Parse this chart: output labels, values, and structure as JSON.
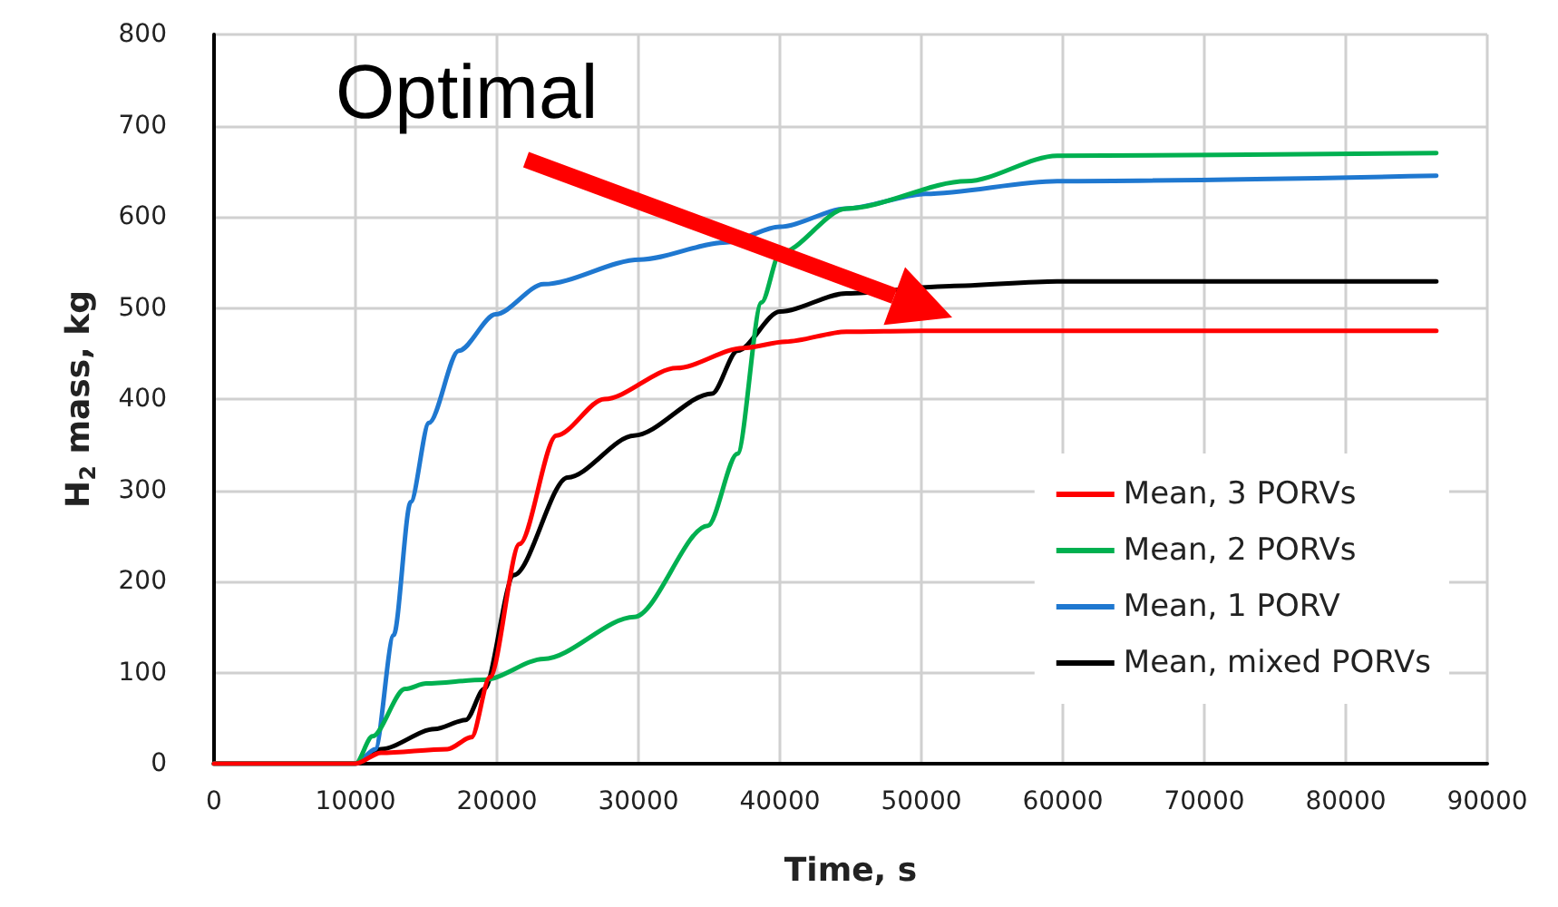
{
  "chart_data": {
    "type": "line",
    "xlabel": "Time, s",
    "ylabel": "H$_{2}$ mass, kg",
    "annotations": [
      "Optimal"
    ],
    "xlim": [
      0,
      90000
    ],
    "xticks": [
      0,
      10000,
      20000,
      30000,
      40000,
      50000,
      60000,
      70000,
      80000,
      90000
    ],
    "ylim": [
      0,
      800
    ],
    "yticks": [
      0,
      100,
      200,
      300,
      400,
      500,
      600,
      700,
      800
    ],
    "grid": true,
    "legend": "bottom right",
    "marker": "none",
    "line_style": "solid",
    "series": [
      {
        "name": "Mean, 3 PORVs",
        "color": "#ff0000",
        "x": [
          0,
          10000,
          11800,
          16500,
          18200,
          19500,
          21600,
          24200,
          27600,
          32700,
          37400,
          40400,
          44700,
          50000,
          86400
        ],
        "values": [
          0,
          0,
          12,
          16,
          29,
          95,
          241,
          360,
          400,
          434,
          456,
          463,
          474,
          475,
          475
        ]
      },
      {
        "name": "Mean, 2 PORVs",
        "color": "#00b050",
        "x": [
          0,
          10000,
          11200,
          13500,
          15000,
          19100,
          23300,
          29700,
          34900,
          37000,
          38700,
          40000,
          44700,
          53200,
          59600,
          86400
        ],
        "values": [
          0,
          0,
          30,
          82,
          88,
          92,
          115,
          161,
          261,
          340,
          506,
          560,
          609,
          639,
          667,
          670
        ]
      },
      {
        "name": "Mean, 1 PORV",
        "color": "#1f78d0",
        "x": [
          0,
          10000,
          11400,
          12700,
          13900,
          15200,
          17300,
          19900,
          23300,
          30100,
          36200,
          40000,
          44700,
          50300,
          59600,
          86400
        ],
        "values": [
          0,
          0,
          16,
          141,
          287,
          374,
          453,
          493,
          526,
          553,
          572,
          589,
          609,
          625,
          639,
          645
        ]
      },
      {
        "name": "Mean, mixed PORVs",
        "color": "#000000",
        "x": [
          0,
          10000,
          11800,
          15600,
          17800,
          19100,
          21200,
          25000,
          29700,
          35200,
          37000,
          40000,
          44700,
          52000,
          59600,
          86400
        ],
        "values": [
          0,
          0,
          16,
          38,
          48,
          82,
          207,
          314,
          360,
          406,
          453,
          496,
          516,
          524,
          529,
          529
        ]
      }
    ]
  }
}
